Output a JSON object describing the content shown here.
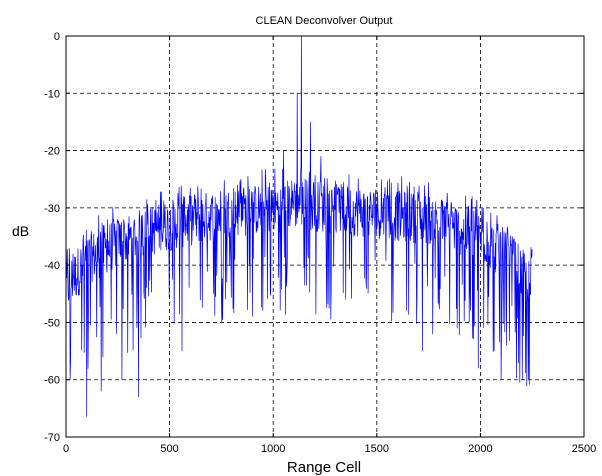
{
  "chart_data": {
    "type": "line",
    "title": "CLEAN Deconvolver Output",
    "xlabel": "Range Cell",
    "ylabel": "dB",
    "xlim": [
      0,
      2500
    ],
    "ylim": [
      -70,
      0
    ],
    "xticks": [
      0,
      500,
      1000,
      1500,
      2000,
      2500
    ],
    "yticks": [
      0,
      -10,
      -20,
      -30,
      -40,
      -50,
      -60,
      -70
    ],
    "xtick_labels": [
      "0",
      "500",
      "1000",
      "1500",
      "2000",
      "2500"
    ],
    "ytick_labels": [
      "0",
      "-10",
      "-20",
      "-30",
      "-40",
      "-50",
      "-60",
      "-70"
    ],
    "grid": true,
    "series": [
      {
        "color": "#0000ff",
        "x_range": [
          0,
          2250
        ],
        "envelope_x": [
          0,
          100,
          250,
          500,
          750,
          1000,
          1125,
          1250,
          1500,
          1750,
          2000,
          2150,
          2250
        ],
        "envelope_median": [
          -44,
          -39,
          -36,
          -33,
          -31,
          -30,
          -29,
          -30,
          -31,
          -32,
          -35,
          -39,
          -44
        ],
        "spikes": [
          {
            "x": 1135,
            "y": 0
          },
          {
            "x": 1115,
            "y": -10
          },
          {
            "x": 1180,
            "y": -15
          },
          {
            "x": 1050,
            "y": -20
          },
          {
            "x": 1230,
            "y": -21
          },
          {
            "x": 100,
            "y": -66.5
          },
          {
            "x": 350,
            "y": -63
          },
          {
            "x": 170,
            "y": -62
          },
          {
            "x": 270,
            "y": -60
          },
          {
            "x": 2190,
            "y": -60.5
          },
          {
            "x": 2100,
            "y": -60
          },
          {
            "x": 1990,
            "y": -58
          },
          {
            "x": 560,
            "y": -55
          },
          {
            "x": 1720,
            "y": -55
          },
          {
            "x": 20,
            "y": -60
          }
        ]
      }
    ]
  }
}
